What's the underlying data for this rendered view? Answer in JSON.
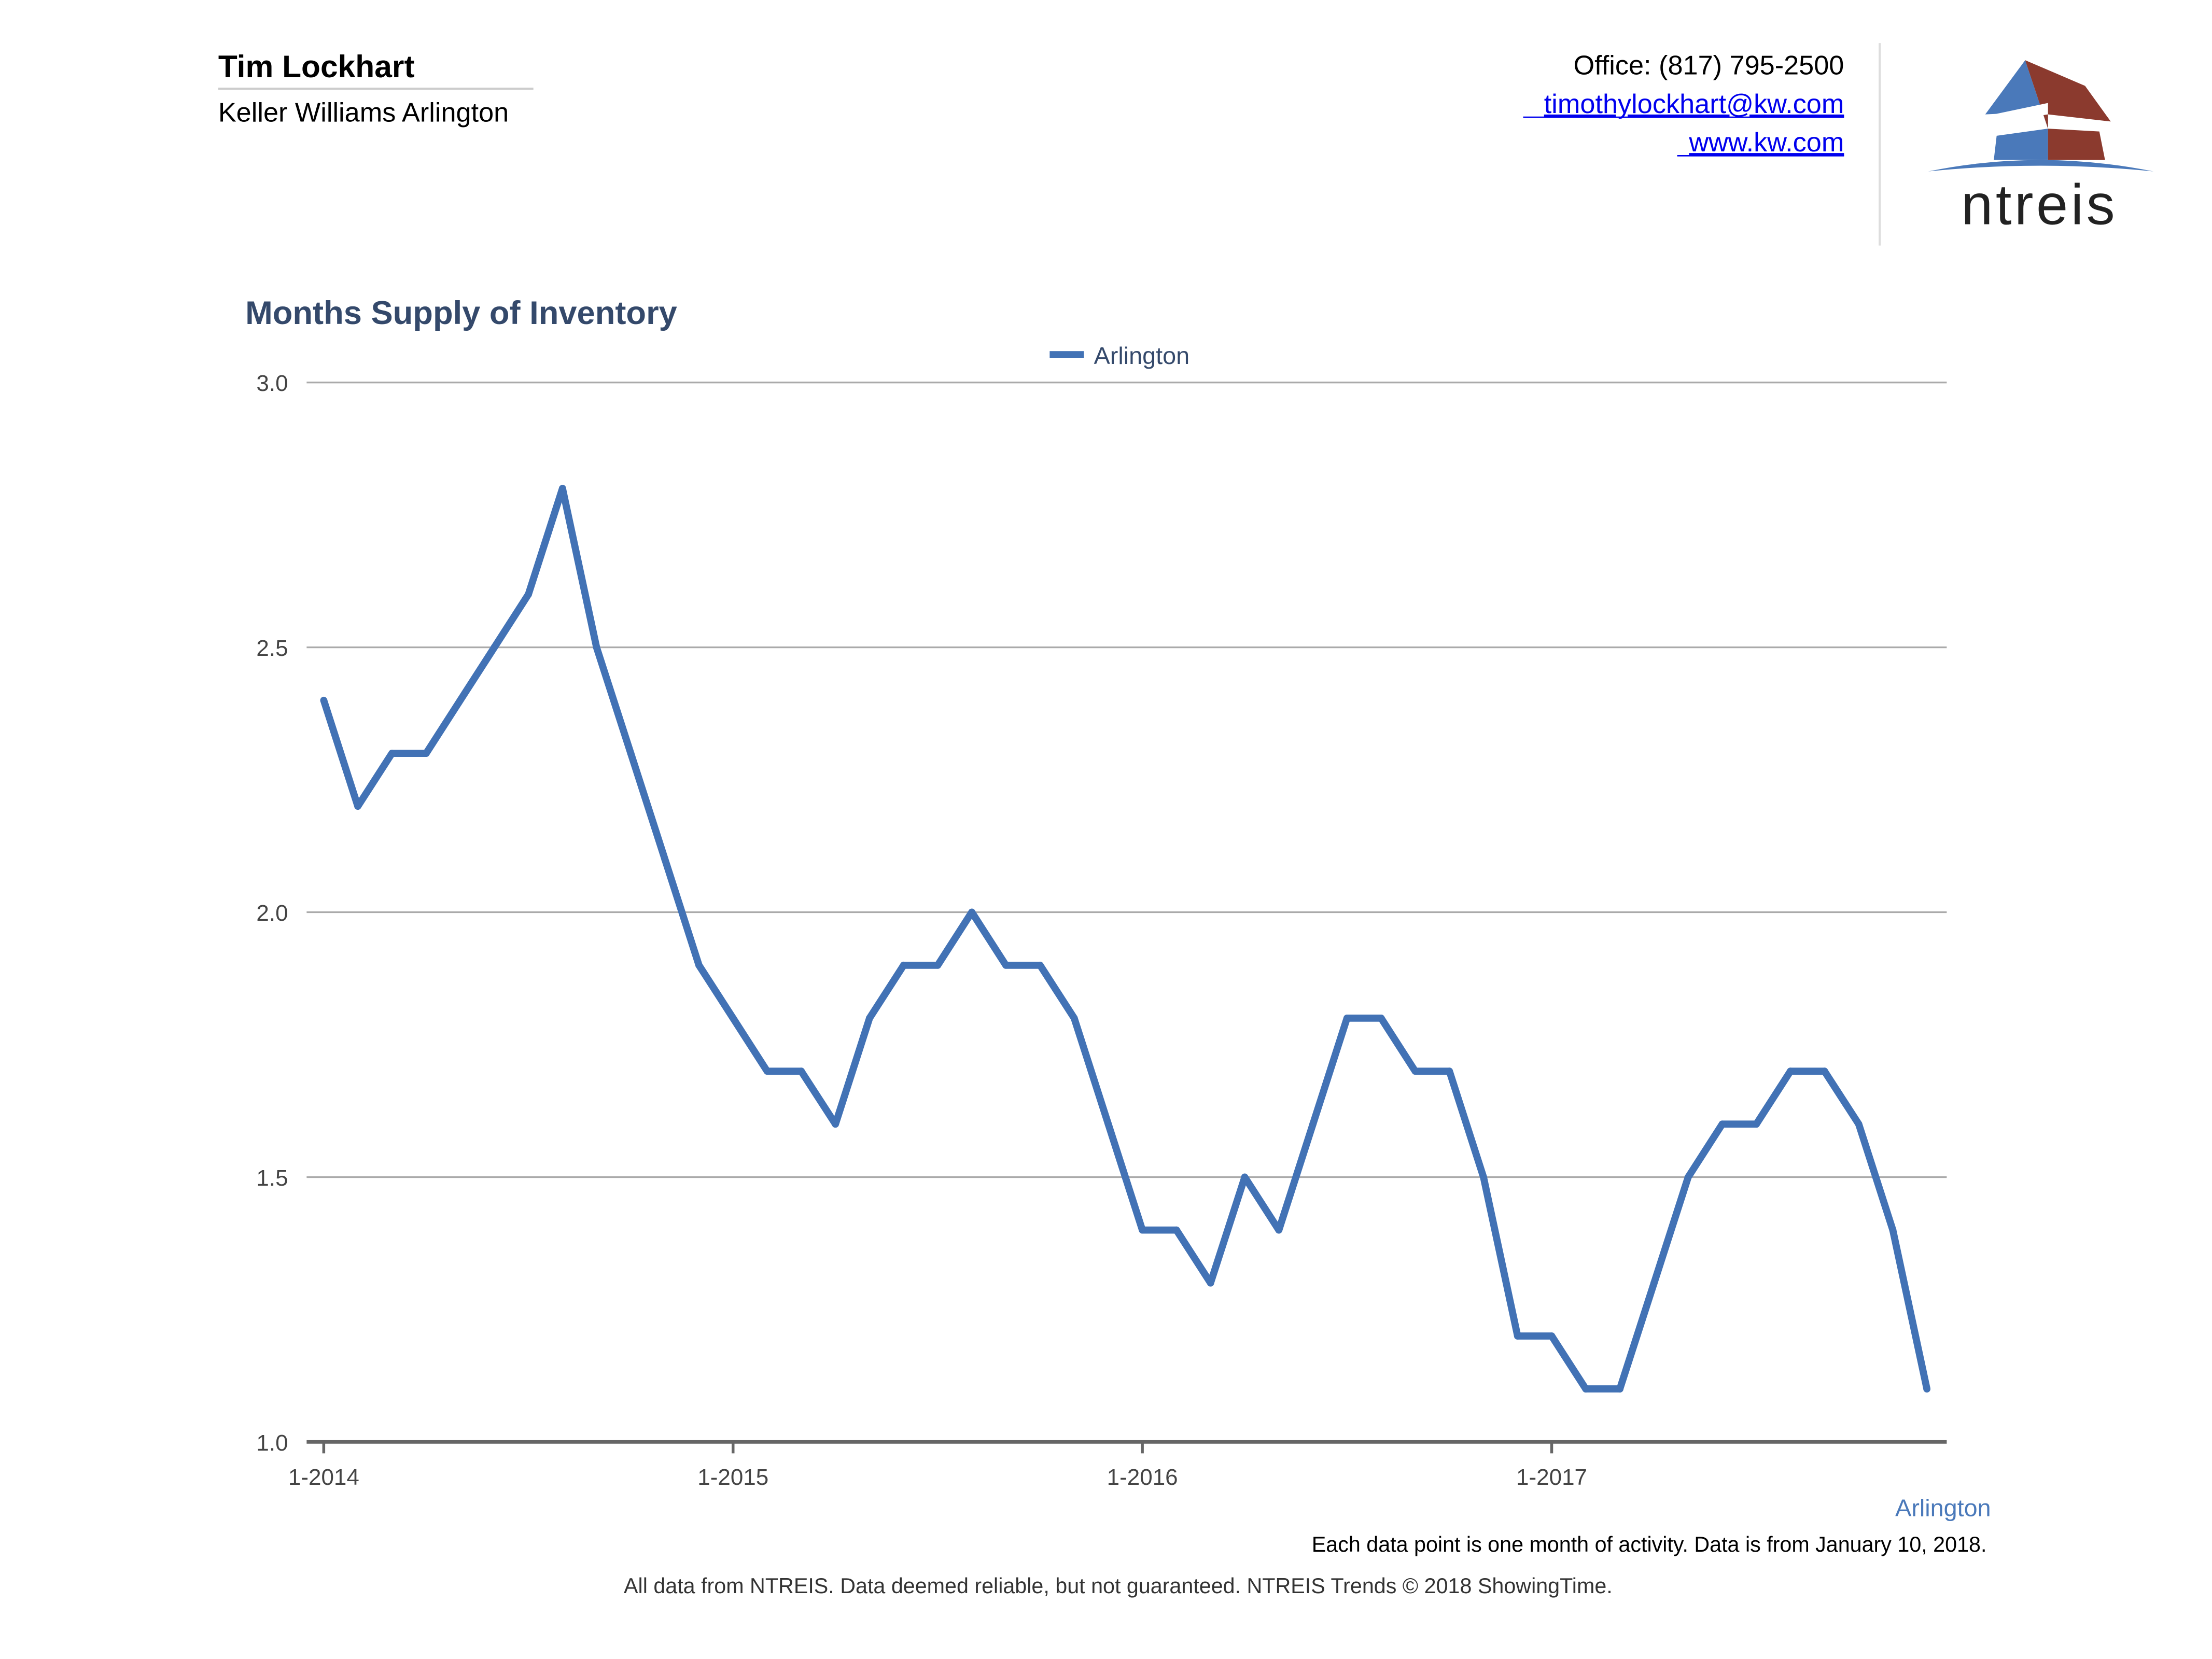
{
  "header": {
    "agent_name": "Tim Lockhart",
    "brokerage": "Keller Williams Arlington",
    "office": "Office: (817) 795-2500",
    "email": "timothylockhart@kw.com",
    "website": "www.kw.com",
    "logo_text": "ntreis"
  },
  "colors": {
    "series": "#4272b5",
    "title": "#34496b",
    "logo_blue": "#4a79ba",
    "logo_red": "#8b3a2e"
  },
  "chart_data": {
    "type": "line",
    "title": "Months Supply of Inventory",
    "xlabel": "",
    "ylabel": "",
    "ylim": [
      1.0,
      3.0
    ],
    "yticks": [
      "1.0",
      "1.5",
      "2.0",
      "2.5",
      "3.0"
    ],
    "xticks": [
      "1-2014",
      "1-2015",
      "1-2016",
      "1-2017"
    ],
    "legend": {
      "position": "top-center",
      "entries": [
        "Arlington"
      ]
    },
    "grid": true,
    "series": [
      {
        "name": "Arlington",
        "start": "1-2014",
        "values": [
          2.4,
          2.2,
          2.3,
          2.3,
          2.4,
          2.5,
          2.6,
          2.8,
          2.5,
          2.3,
          2.1,
          1.9,
          1.8,
          1.7,
          1.7,
          1.6,
          1.8,
          1.9,
          1.9,
          2.0,
          1.9,
          1.9,
          1.8,
          1.6,
          1.4,
          1.4,
          1.3,
          1.5,
          1.4,
          1.6,
          1.8,
          1.8,
          1.7,
          1.7,
          1.5,
          1.2,
          1.2,
          1.1,
          1.1,
          1.3,
          1.5,
          1.6,
          1.6,
          1.7,
          1.7,
          1.6,
          1.4,
          1.1
        ]
      }
    ],
    "series_end_label": "Arlington"
  },
  "footer": {
    "note": "Each data point is one month of activity. Data is from January 10, 2018.",
    "disclaimer": "All data from NTREIS. Data deemed reliable, but not guaranteed. NTREIS Trends © 2018 ShowingTime."
  }
}
